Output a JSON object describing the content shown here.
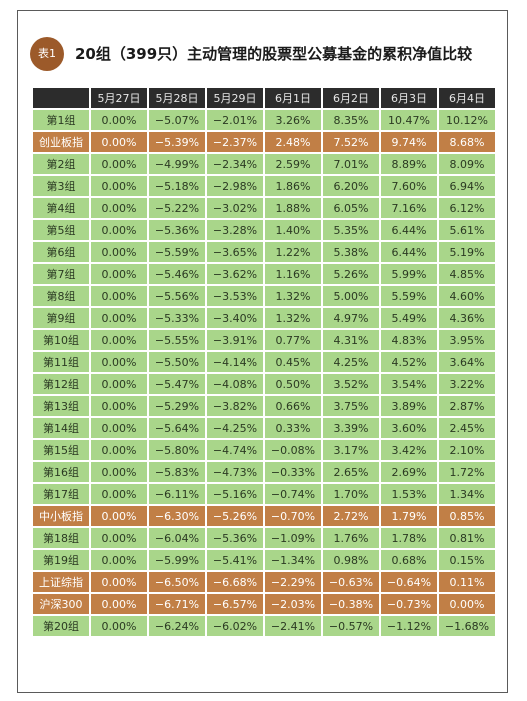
{
  "badge": "表1",
  "title": "20组（399只）主动管理的股票型公募基金的累积净值比较",
  "columns": [
    "",
    "5月27日",
    "5月28日",
    "5月29日",
    "6月1日",
    "6月2日",
    "6月3日",
    "6月4日"
  ],
  "rows": [
    {
      "label": "第1组",
      "highlight": false,
      "values": [
        "0.00%",
        "−5.07%",
        "−2.01%",
        "3.26%",
        "8.35%",
        "10.47%",
        "10.12%"
      ]
    },
    {
      "label": "创业板指",
      "highlight": true,
      "values": [
        "0.00%",
        "−5.39%",
        "−2.37%",
        "2.48%",
        "7.52%",
        "9.74%",
        "8.68%"
      ]
    },
    {
      "label": "第2组",
      "highlight": false,
      "values": [
        "0.00%",
        "−4.99%",
        "−2.34%",
        "2.59%",
        "7.01%",
        "8.89%",
        "8.09%"
      ]
    },
    {
      "label": "第3组",
      "highlight": false,
      "values": [
        "0.00%",
        "−5.18%",
        "−2.98%",
        "1.86%",
        "6.20%",
        "7.60%",
        "6.94%"
      ]
    },
    {
      "label": "第4组",
      "highlight": false,
      "values": [
        "0.00%",
        "−5.22%",
        "−3.02%",
        "1.88%",
        "6.05%",
        "7.16%",
        "6.12%"
      ]
    },
    {
      "label": "第5组",
      "highlight": false,
      "values": [
        "0.00%",
        "−5.36%",
        "−3.28%",
        "1.40%",
        "5.35%",
        "6.44%",
        "5.61%"
      ]
    },
    {
      "label": "第6组",
      "highlight": false,
      "values": [
        "0.00%",
        "−5.59%",
        "−3.65%",
        "1.22%",
        "5.38%",
        "6.44%",
        "5.19%"
      ]
    },
    {
      "label": "第7组",
      "highlight": false,
      "values": [
        "0.00%",
        "−5.46%",
        "−3.62%",
        "1.16%",
        "5.26%",
        "5.99%",
        "4.85%"
      ]
    },
    {
      "label": "第8组",
      "highlight": false,
      "values": [
        "0.00%",
        "−5.56%",
        "−3.53%",
        "1.32%",
        "5.00%",
        "5.59%",
        "4.60%"
      ]
    },
    {
      "label": "第9组",
      "highlight": false,
      "values": [
        "0.00%",
        "−5.33%",
        "−3.40%",
        "1.32%",
        "4.97%",
        "5.49%",
        "4.36%"
      ]
    },
    {
      "label": "第10组",
      "highlight": false,
      "values": [
        "0.00%",
        "−5.55%",
        "−3.91%",
        "0.77%",
        "4.31%",
        "4.83%",
        "3.95%"
      ]
    },
    {
      "label": "第11组",
      "highlight": false,
      "values": [
        "0.00%",
        "−5.50%",
        "−4.14%",
        "0.45%",
        "4.25%",
        "4.52%",
        "3.64%"
      ]
    },
    {
      "label": "第12组",
      "highlight": false,
      "values": [
        "0.00%",
        "−5.47%",
        "−4.08%",
        "0.50%",
        "3.52%",
        "3.54%",
        "3.22%"
      ]
    },
    {
      "label": "第13组",
      "highlight": false,
      "values": [
        "0.00%",
        "−5.29%",
        "−3.82%",
        "0.66%",
        "3.75%",
        "3.89%",
        "2.87%"
      ]
    },
    {
      "label": "第14组",
      "highlight": false,
      "values": [
        "0.00%",
        "−5.64%",
        "−4.25%",
        "0.33%",
        "3.39%",
        "3.60%",
        "2.45%"
      ]
    },
    {
      "label": "第15组",
      "highlight": false,
      "values": [
        "0.00%",
        "−5.80%",
        "−4.74%",
        "−0.08%",
        "3.17%",
        "3.42%",
        "2.10%"
      ]
    },
    {
      "label": "第16组",
      "highlight": false,
      "values": [
        "0.00%",
        "−5.83%",
        "−4.73%",
        "−0.33%",
        "2.65%",
        "2.69%",
        "1.72%"
      ]
    },
    {
      "label": "第17组",
      "highlight": false,
      "values": [
        "0.00%",
        "−6.11%",
        "−5.16%",
        "−0.74%",
        "1.70%",
        "1.53%",
        "1.34%"
      ]
    },
    {
      "label": "中小板指",
      "highlight": true,
      "values": [
        "0.00%",
        "−6.30%",
        "−5.26%",
        "−0.70%",
        "2.72%",
        "1.79%",
        "0.85%"
      ]
    },
    {
      "label": "第18组",
      "highlight": false,
      "values": [
        "0.00%",
        "−6.04%",
        "−5.36%",
        "−1.09%",
        "1.76%",
        "1.78%",
        "0.81%"
      ]
    },
    {
      "label": "第19组",
      "highlight": false,
      "values": [
        "0.00%",
        "−5.99%",
        "−5.41%",
        "−1.34%",
        "0.98%",
        "0.68%",
        "0.15%"
      ]
    },
    {
      "label": "上证综指",
      "highlight": true,
      "values": [
        "0.00%",
        "−6.50%",
        "−6.68%",
        "−2.29%",
        "−0.63%",
        "−0.64%",
        "0.11%"
      ]
    },
    {
      "label": "沪深300",
      "highlight": true,
      "values": [
        "0.00%",
        "−6.71%",
        "−6.57%",
        "−2.03%",
        "−0.38%",
        "−0.73%",
        "0.00%"
      ]
    },
    {
      "label": "第20组",
      "highlight": false,
      "values": [
        "0.00%",
        "−6.24%",
        "−6.02%",
        "−2.41%",
        "−0.57%",
        "−1.12%",
        "−1.68%"
      ]
    }
  ],
  "colors": {
    "row_default": "#a9d68a",
    "row_highlight": "#c17f46",
    "header_bg": "#2c2c2c",
    "badge_bg": "#9c5a2a"
  }
}
